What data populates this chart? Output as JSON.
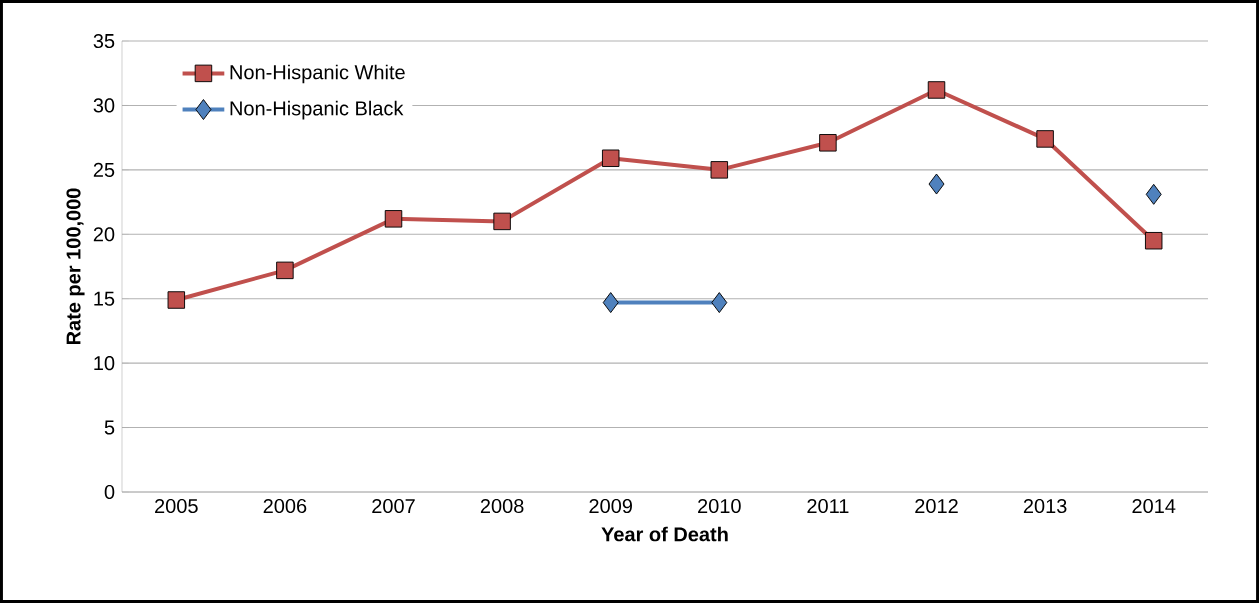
{
  "chart_data": {
    "type": "line",
    "xlabel": "Year of Death",
    "ylabel": "Rate per 100,000",
    "categories": [
      "2005",
      "2006",
      "2007",
      "2008",
      "2009",
      "2010",
      "2011",
      "2012",
      "2013",
      "2014"
    ],
    "series": [
      {
        "name": "Non-Hispanic White",
        "color": "#c0504d",
        "marker": "square",
        "values": [
          14.9,
          17.2,
          21.2,
          21.0,
          25.9,
          25.0,
          27.1,
          31.2,
          27.4,
          19.5
        ]
      },
      {
        "name": "Non-Hispanic Black",
        "color": "#4f81bd",
        "marker": "diamond",
        "values": [
          null,
          null,
          null,
          null,
          14.7,
          14.7,
          null,
          23.9,
          null,
          23.1
        ]
      }
    ],
    "ylim": [
      0,
      35
    ],
    "yticks": [
      0,
      5,
      10,
      15,
      20,
      25,
      30,
      35
    ],
    "grid": "y",
    "legend": "top left",
    "line_style": "solid"
  }
}
